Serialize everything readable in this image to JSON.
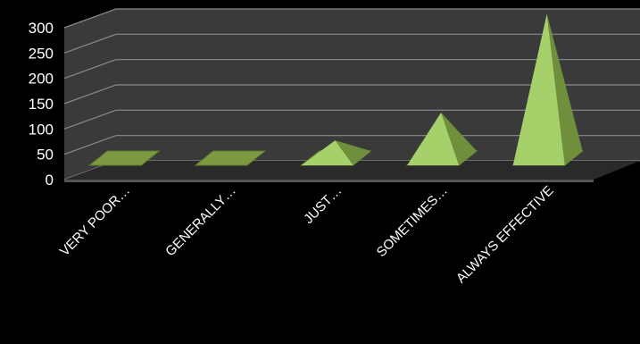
{
  "chart_data": {
    "type": "bar",
    "style": "3d-pyramid",
    "categories": [
      "VERY POOR…",
      "GENERALLY…",
      "JUST…",
      "SOMETIMES…",
      "ALWAYS EFFECTIVE"
    ],
    "values": [
      2,
      3,
      35,
      90,
      285
    ],
    "yticks": [
      "0",
      "50",
      "100",
      "150",
      "200",
      "250",
      "300"
    ],
    "ylim": [
      0,
      300
    ],
    "grid": true,
    "legend": "none",
    "colors": {
      "background": "#000000",
      "wall": "#3a3a3a",
      "gridline": "#8a8a8a",
      "pyramid_front": "#a6d06a",
      "pyramid_side": "#6f8f3c",
      "pyramid_base": "#7d9a43"
    }
  }
}
